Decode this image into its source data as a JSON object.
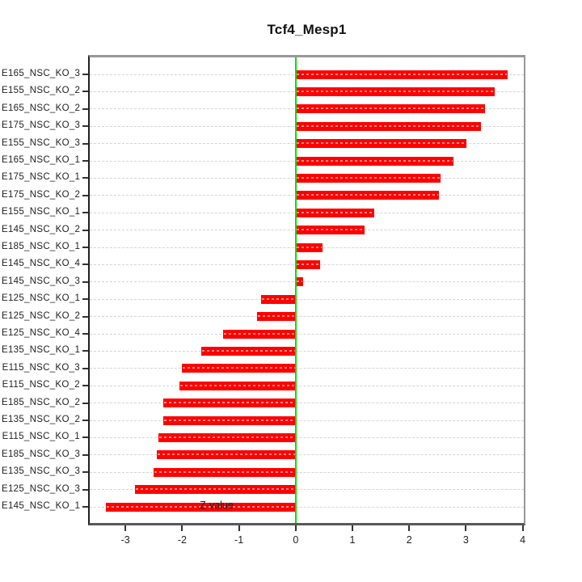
{
  "page": {
    "background": "#ffffff"
  },
  "chart_data": {
    "type": "bar",
    "orientation": "horizontal",
    "title": "Tcf4_Mesp1",
    "xlabel": "Z-value",
    "ylabel": "",
    "xlim": [
      -3.63,
      4.02
    ],
    "x_ticks": [
      -3,
      -2,
      -1,
      0,
      1,
      2,
      3,
      4
    ],
    "grid": true,
    "grid_style": "dashed",
    "legend": "none",
    "zero_line_x": 0,
    "categories": [
      "E165_NSC_KO_3",
      "E155_NSC_KO_2",
      "E165_NSC_KO_2",
      "E175_NSC_KO_3",
      "E155_NSC_KO_3",
      "E165_NSC_KO_1",
      "E175_NSC_KO_1",
      "E175_NSC_KO_2",
      "E155_NSC_KO_1",
      "E145_NSC_KO_2",
      "E185_NSC_KO_1",
      "E145_NSC_KO_4",
      "E145_NSC_KO_3",
      "E125_NSC_KO_1",
      "E125_NSC_KO_2",
      "E125_NSC_KO_4",
      "E135_NSC_KO_1",
      "E115_NSC_KO_3",
      "E115_NSC_KO_2",
      "E185_NSC_KO_2",
      "E135_NSC_KO_2",
      "E115_NSC_KO_1",
      "E185_NSC_KO_3",
      "E135_NSC_KO_3",
      "E125_NSC_KO_3",
      "E145_NSC_KO_1"
    ],
    "values": [
      3.73,
      3.51,
      3.34,
      3.26,
      3.01,
      2.78,
      2.56,
      2.53,
      1.39,
      1.21,
      0.47,
      0.43,
      0.13,
      -0.61,
      -0.68,
      -1.28,
      -1.66,
      -2.0,
      -2.05,
      -2.33,
      -2.34,
      -2.42,
      -2.45,
      -2.5,
      -2.83,
      -3.35
    ],
    "colors": {
      "bar": "#ff0000",
      "zero_line": "#00e400",
      "grid": "#d4d4d4",
      "axis_text": "#222222",
      "box_top": "#989898",
      "box_right": "#989898",
      "box_bottom": "#585858",
      "box_left": "#202020"
    }
  }
}
